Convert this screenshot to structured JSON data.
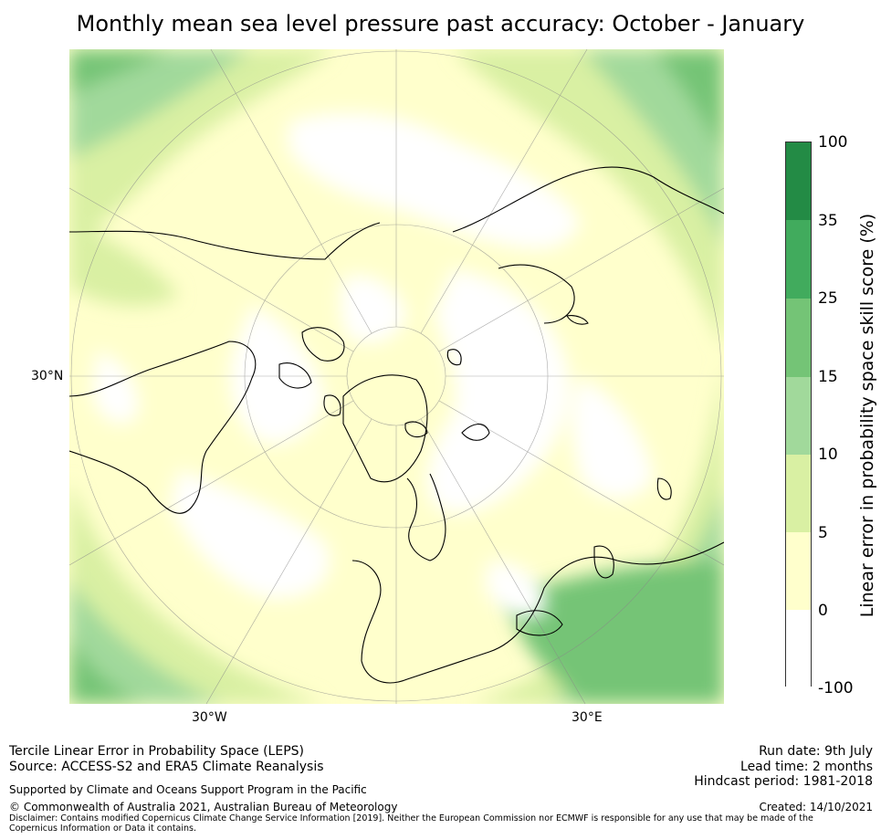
{
  "title": "Monthly mean sea level pressure past accuracy: October - January",
  "map": {
    "projection": "north-polar-stereographic",
    "labels": {
      "lat_30n": "30°N",
      "lon_30w": "30°W",
      "lon_30e": "30°E"
    }
  },
  "colorbar": {
    "title": "Linear error in probability space skill score (%)",
    "ticks": [
      "100",
      "35",
      "25",
      "15",
      "10",
      "5",
      "0",
      "-100"
    ],
    "colors": [
      "#238b45",
      "#41ab5d",
      "#74c476",
      "#a1d99b",
      "#d9f0a3",
      "#ffffcc",
      "#ffffff"
    ]
  },
  "footer": {
    "method": "Tercile Linear Error in Probability Space (LEPS)",
    "source": "Source: ACCESS-S2 and ERA5 Climate Reanalysis",
    "support": "Supported by Climate and Oceans Support Program in the Pacific",
    "copyright": "© Commonwealth of Australia 2021, Australian Bureau of Meteorology",
    "disclaimer": "Disclaimer: Contains modified Copernicus Climate Change Service Information [2019]. Neither the European Commission nor ECMWF is responsible for any use that may be made of the Copernicus Information or Data it contains.",
    "run_date": "Run date: 9th July",
    "lead_time": "Lead time: 2 months",
    "hindcast": "Hindcast period: 1981-2018",
    "created": "Created: 14/10/2021"
  }
}
